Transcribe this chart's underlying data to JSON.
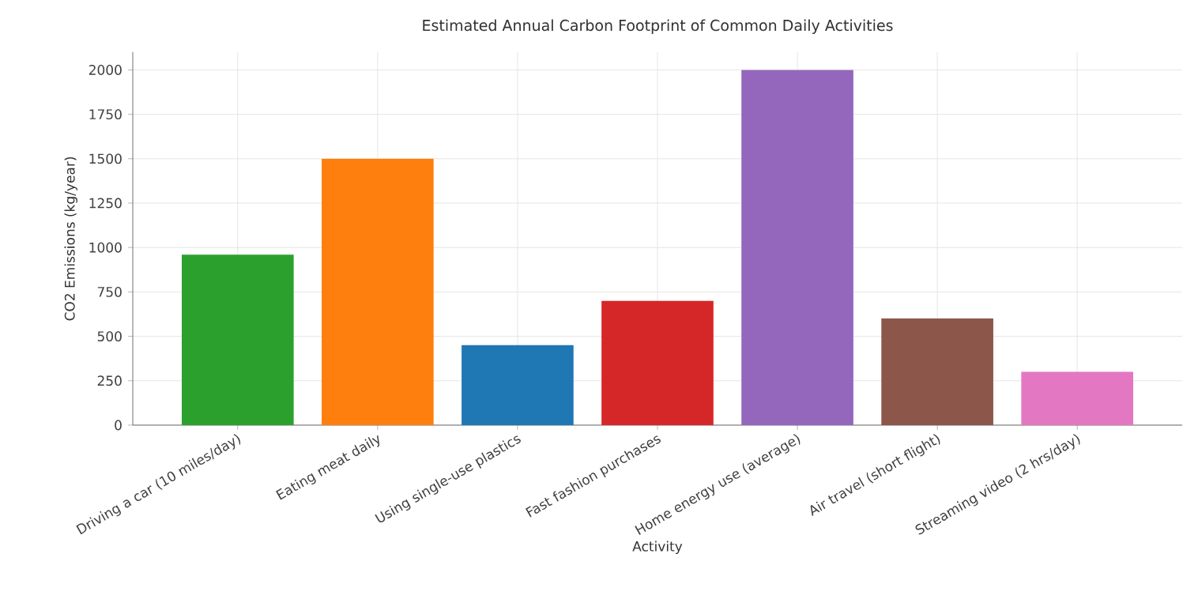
{
  "chart_data": {
    "type": "bar",
    "title": "Estimated Annual Carbon Footprint of Common Daily Activities",
    "xlabel": "Activity",
    "ylabel": "CO2 Emissions (kg/year)",
    "categories": [
      "Driving a car (10 miles/day)",
      "Eating meat daily",
      "Using single-use plastics",
      "Fast fashion purchases",
      "Home energy use (average)",
      "Air travel (short flight)",
      "Streaming video (2 hrs/day)"
    ],
    "values": [
      960,
      1500,
      450,
      700,
      2000,
      600,
      300
    ],
    "colors": [
      "#2ca02c",
      "#ff7f0e",
      "#1f77b4",
      "#d62728",
      "#9467bd",
      "#8c564b",
      "#e377c2"
    ],
    "ylim": [
      0,
      2100
    ],
    "yticks": [
      0,
      250,
      500,
      750,
      1000,
      1250,
      1500,
      1750,
      2000
    ],
    "grid": true
  }
}
